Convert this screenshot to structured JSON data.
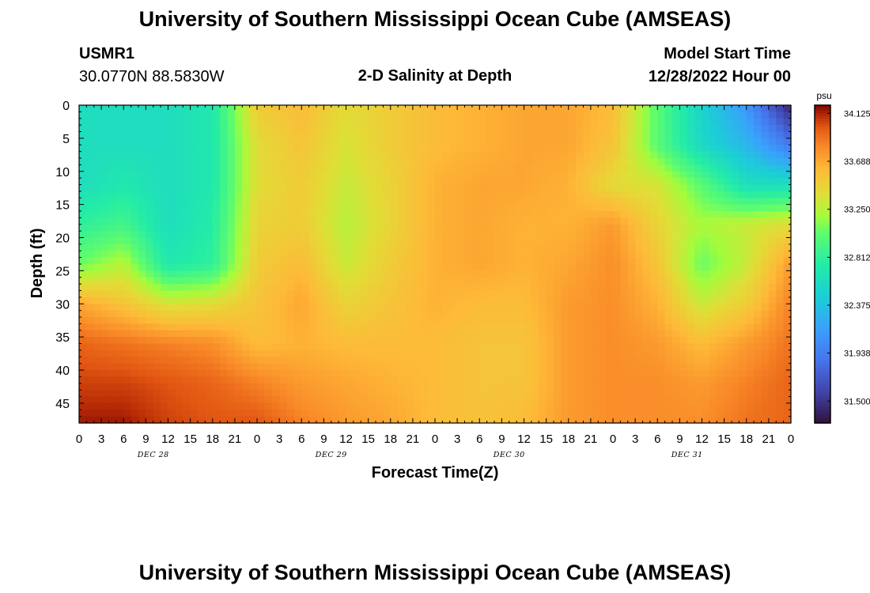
{
  "page": {
    "title": "University of Southern Mississippi Ocean Cube (AMSEAS)",
    "title_repeat": "University of Southern Mississippi Ocean Cube (AMSEAS)",
    "station": "USMR1",
    "coordinates": "30.0770N  88.5830W",
    "plot_title": "2-D Salinity at Depth",
    "model_start_label": "Model Start Time",
    "model_start_value": "12/28/2022 Hour 00"
  },
  "chart_data": {
    "type": "heatmap",
    "title": "2-D Salinity at Depth",
    "xlabel": "Forecast Time(Z)",
    "ylabel": "Depth (ft)",
    "x_ticks": [
      "0",
      "3",
      "6",
      "9",
      "12",
      "15",
      "18",
      "21",
      "0",
      "3",
      "6",
      "9",
      "12",
      "15",
      "18",
      "21",
      "0",
      "3",
      "6",
      "9",
      "12",
      "15",
      "18",
      "21",
      "0",
      "3",
      "6",
      "9",
      "12",
      "15",
      "18",
      "21",
      "0"
    ],
    "x_range_hours": [
      0,
      96
    ],
    "date_labels": [
      {
        "label": "DEC 28",
        "hour": 10
      },
      {
        "label": "DEC 29",
        "hour": 34
      },
      {
        "label": "DEC 30",
        "hour": 58
      },
      {
        "label": "DEC 31",
        "hour": 82
      }
    ],
    "y_ticks": [
      "0",
      "5",
      "10",
      "15",
      "20",
      "25",
      "30",
      "35",
      "40",
      "45"
    ],
    "y_range_ft": [
      0,
      48
    ],
    "colorbar": {
      "unit": "psu",
      "ticks": [
        "34.125",
        "33.688",
        "33.250",
        "32.812",
        "32.375",
        "31.938",
        "31.500"
      ],
      "range": [
        31.3,
        34.2
      ]
    },
    "grid_hours": [
      0,
      6,
      12,
      18,
      24,
      30,
      36,
      42,
      48,
      54,
      60,
      66,
      72,
      78,
      84,
      90,
      96
    ],
    "grid_depths": [
      0,
      6,
      12,
      18,
      24,
      30,
      36,
      42,
      48
    ],
    "salinity": [
      [
        32.6,
        32.6,
        32.6,
        32.7,
        33.5,
        33.6,
        33.4,
        33.5,
        33.6,
        33.65,
        33.7,
        33.7,
        33.6,
        33.0,
        32.5,
        32.1,
        31.4
      ],
      [
        32.6,
        32.6,
        32.6,
        32.7,
        33.4,
        33.55,
        33.35,
        33.5,
        33.6,
        33.65,
        33.7,
        33.7,
        33.55,
        33.0,
        32.55,
        32.3,
        31.9
      ],
      [
        32.6,
        32.7,
        32.6,
        32.7,
        33.4,
        33.5,
        33.3,
        33.45,
        33.65,
        33.7,
        33.7,
        33.65,
        33.4,
        33.35,
        33.0,
        32.6,
        32.6
      ],
      [
        32.8,
        32.9,
        32.6,
        32.75,
        33.45,
        33.5,
        33.25,
        33.45,
        33.65,
        33.7,
        33.65,
        33.65,
        33.75,
        33.45,
        33.2,
        33.3,
        33.4
      ],
      [
        33.05,
        33.25,
        32.7,
        32.8,
        33.5,
        33.6,
        33.3,
        33.5,
        33.65,
        33.7,
        33.65,
        33.7,
        33.8,
        33.55,
        33.05,
        33.3,
        33.75
      ],
      [
        33.7,
        33.55,
        33.35,
        33.4,
        33.55,
        33.7,
        33.45,
        33.55,
        33.65,
        33.6,
        33.6,
        33.75,
        33.8,
        33.65,
        33.3,
        33.5,
        33.85
      ],
      [
        33.95,
        33.9,
        33.85,
        33.8,
        33.6,
        33.65,
        33.6,
        33.6,
        33.6,
        33.55,
        33.55,
        33.75,
        33.8,
        33.75,
        33.6,
        33.75,
        33.9
      ],
      [
        34.05,
        34.05,
        34.0,
        33.95,
        33.85,
        33.75,
        33.7,
        33.65,
        33.6,
        33.55,
        33.55,
        33.75,
        33.8,
        33.8,
        33.75,
        33.85,
        33.95
      ],
      [
        34.15,
        34.15,
        34.05,
        34.0,
        34.0,
        33.85,
        33.75,
        33.7,
        33.6,
        33.55,
        33.6,
        33.75,
        33.8,
        33.8,
        33.8,
        33.9,
        33.95
      ]
    ]
  }
}
